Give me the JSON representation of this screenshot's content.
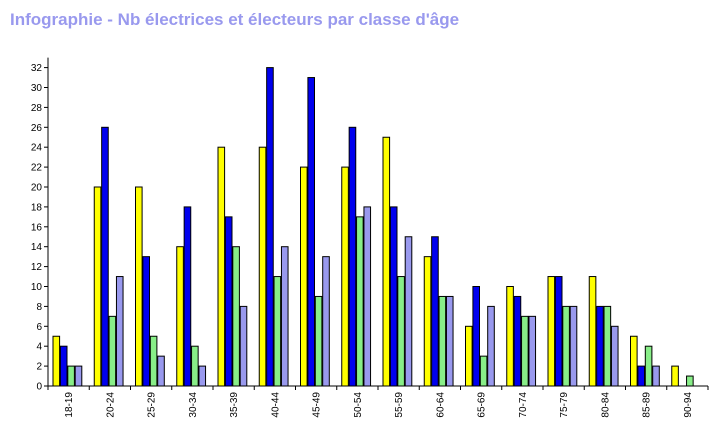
{
  "title": "Infographie - Nb électrices et électeurs par classe d'âge",
  "chart_data": {
    "type": "bar",
    "title": "Infographie - Nb électrices et électeurs par classe d'âge",
    "xlabel": "",
    "ylabel": "",
    "ylim": [
      0,
      33
    ],
    "yticks": [
      0,
      2,
      4,
      6,
      8,
      10,
      12,
      14,
      16,
      18,
      20,
      22,
      24,
      26,
      28,
      30,
      32
    ],
    "grid": false,
    "legend": "none",
    "categories": [
      "18-19",
      "20-24",
      "25-29",
      "30-34",
      "35-39",
      "40-44",
      "45-49",
      "50-54",
      "55-59",
      "60-64",
      "65-69",
      "70-74",
      "75-79",
      "80-84",
      "85-89",
      "90-94"
    ],
    "series": [
      {
        "color": "#ffff00",
        "values": [
          5,
          20,
          20,
          14,
          24,
          24,
          22,
          22,
          25,
          13,
          6,
          10,
          11,
          11,
          5,
          2
        ]
      },
      {
        "color": "#0000ee",
        "values": [
          4,
          26,
          13,
          18,
          17,
          32,
          31,
          26,
          18,
          15,
          10,
          9,
          11,
          8,
          2,
          0
        ]
      },
      {
        "color": "#88ee88",
        "values": [
          2,
          7,
          5,
          4,
          14,
          11,
          9,
          17,
          11,
          9,
          3,
          7,
          8,
          8,
          4,
          1
        ]
      },
      {
        "color": "#9999ee",
        "values": [
          2,
          11,
          3,
          2,
          8,
          14,
          13,
          18,
          15,
          9,
          8,
          7,
          8,
          6,
          2,
          0
        ]
      }
    ]
  }
}
